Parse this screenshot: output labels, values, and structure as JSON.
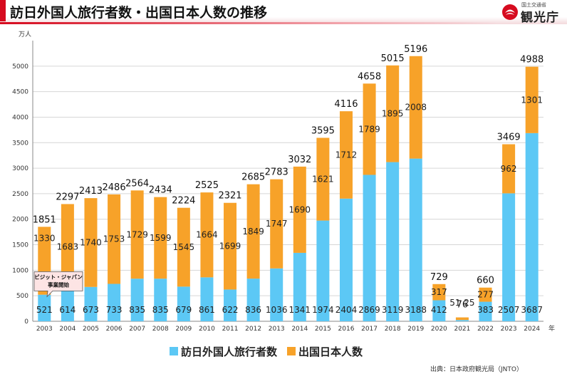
{
  "header": {
    "title": "訪日外国人旅行者数・出国日本人数の推移",
    "logo_small": "国土交通省",
    "logo_main": "観光庁"
  },
  "colors": {
    "inbound": "#5cc8f5",
    "outbound": "#f7a229",
    "brand_red": "#d60b1f",
    "callout_fill": "#fde4e4"
  },
  "source": "出典：日本政府観光局（JNTO）",
  "chart_data": {
    "type": "bar",
    "stacked": true,
    "ylabel": "万人",
    "xlabel_unit": "年",
    "ylim": [
      0,
      5500
    ],
    "yticks": [
      0,
      500,
      1000,
      1500,
      2000,
      2500,
      3000,
      3500,
      4000,
      4500,
      5000
    ],
    "grid": true,
    "legend_position": "bottom",
    "categories": [
      "2003",
      "2004",
      "2005",
      "2006",
      "2007",
      "2008",
      "2009",
      "2010",
      "2011",
      "2012",
      "2013",
      "2014",
      "2015",
      "2016",
      "2017",
      "2018",
      "2019",
      "2020",
      "2021",
      "2022",
      "2023",
      "2024"
    ],
    "series": [
      {
        "name": "訪日外国人旅行者数",
        "values": [
          521,
          614,
          673,
          733,
          835,
          835,
          679,
          861,
          622,
          836,
          1036,
          1341,
          1974,
          2404,
          2869,
          3119,
          3188,
          412,
          25,
          383,
          2507,
          3687
        ]
      },
      {
        "name": "出国日本人数",
        "values": [
          1330,
          1683,
          1740,
          1753,
          1729,
          1599,
          1545,
          1664,
          1699,
          1849,
          1747,
          1690,
          1621,
          1712,
          1789,
          1895,
          2008,
          317,
          51,
          277,
          962,
          1301
        ]
      }
    ],
    "totals": [
      1851,
      2297,
      2413,
      2486,
      2564,
      2434,
      2224,
      2525,
      2321,
      2685,
      2783,
      3032,
      3595,
      4116,
      4658,
      5015,
      5196,
      729,
      76,
      660,
      3469,
      4988
    ],
    "annotation": {
      "category": "2003",
      "lines": [
        "ビジット・ジャパン",
        "事業開始"
      ]
    }
  }
}
